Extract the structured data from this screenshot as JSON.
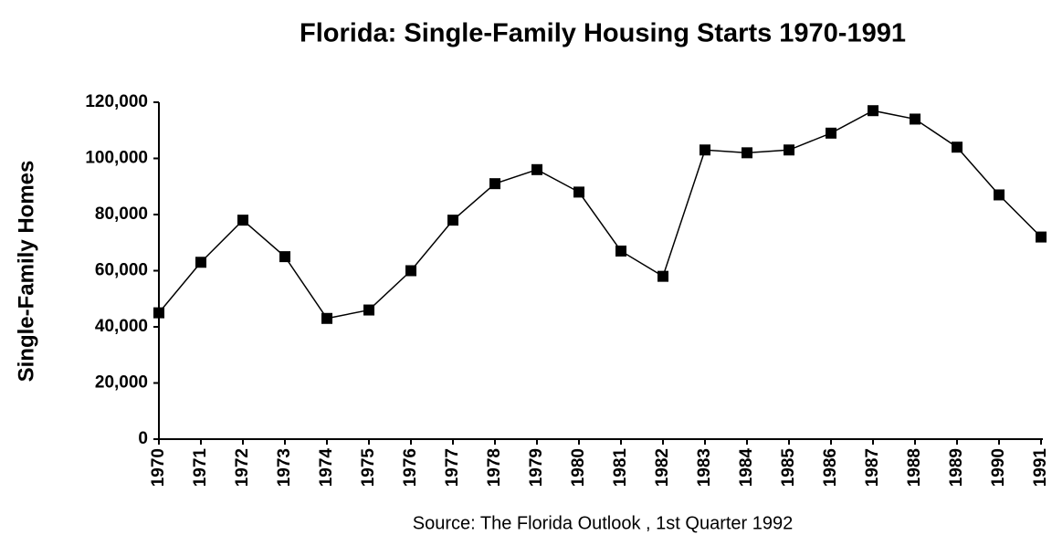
{
  "chart_data": {
    "type": "line",
    "title": "Florida: Single-Family Housing Starts 1970-1991",
    "y_label": "Single-Family Homes",
    "source": "Source: The Florida Outlook , 1st  Quarter 1992",
    "categories": [
      "1970",
      "1971",
      "1972",
      "1973",
      "1974",
      "1975",
      "1976",
      "1977",
      "1978",
      "1979",
      "1980",
      "1981",
      "1982",
      "1983",
      "1984",
      "1985",
      "1986",
      "1987",
      "1988",
      "1989",
      "1990",
      "1991"
    ],
    "values": [
      45000,
      63000,
      78000,
      65000,
      43000,
      46000,
      60000,
      78000,
      91000,
      96000,
      88000,
      67000,
      58000,
      103000,
      102000,
      103000,
      109000,
      117000,
      114000,
      104000,
      87000,
      72000
    ],
    "color": "#000000",
    "ylim": [
      0,
      120000
    ],
    "yticks": [
      0,
      {
        "value": 20000,
        "label": "20,000"
      },
      {
        "value": 40000,
        "label": "40,000"
      },
      {
        "value": 60000,
        "label": "60,000"
      },
      {
        "value": 80000,
        "label": "80,000"
      },
      {
        "value": 100000,
        "label": "100,000"
      },
      {
        "value": 120000,
        "label": "120,000"
      }
    ],
    "grid": false
  }
}
